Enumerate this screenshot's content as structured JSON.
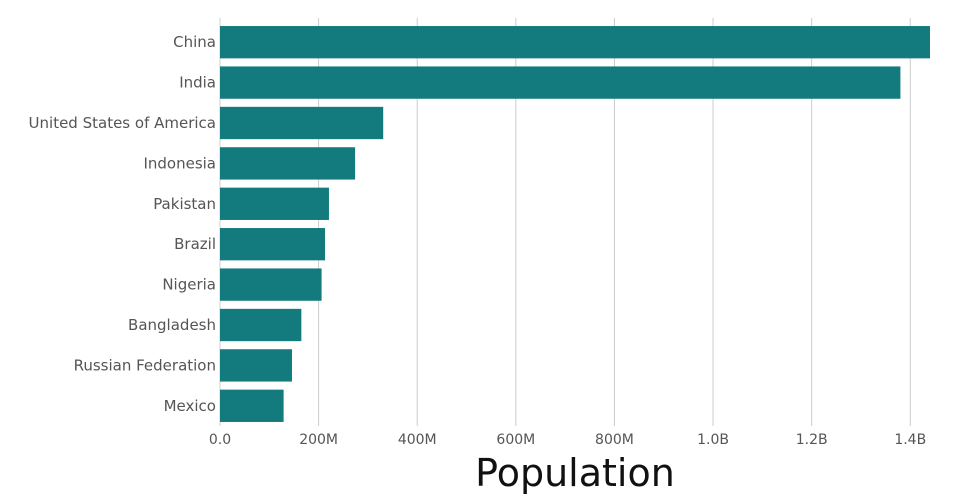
{
  "chart_data": {
    "type": "bar",
    "orientation": "horizontal",
    "categories": [
      "China",
      "India",
      "United States of America",
      "Indonesia",
      "Pakistan",
      "Brazil",
      "Nigeria",
      "Bangladesh",
      "Russian Federation",
      "Mexico"
    ],
    "values": [
      1440000000,
      1380000000,
      331000000,
      274000000,
      221000000,
      213000000,
      206000000,
      165000000,
      146000000,
      129000000
    ],
    "xlabel": "Population",
    "ylabel": "",
    "xlim": [
      0,
      1440000000
    ],
    "x_ticks": [
      {
        "value": 0,
        "label": "0.0"
      },
      {
        "value": 200000000,
        "label": "200M"
      },
      {
        "value": 400000000,
        "label": "400M"
      },
      {
        "value": 600000000,
        "label": "600M"
      },
      {
        "value": 800000000,
        "label": "800M"
      },
      {
        "value": 1000000000,
        "label": "1.0B"
      },
      {
        "value": 1200000000,
        "label": "1.2B"
      },
      {
        "value": 1400000000,
        "label": "1.4B"
      }
    ],
    "grid": true,
    "bar_color": "#137b7d"
  }
}
